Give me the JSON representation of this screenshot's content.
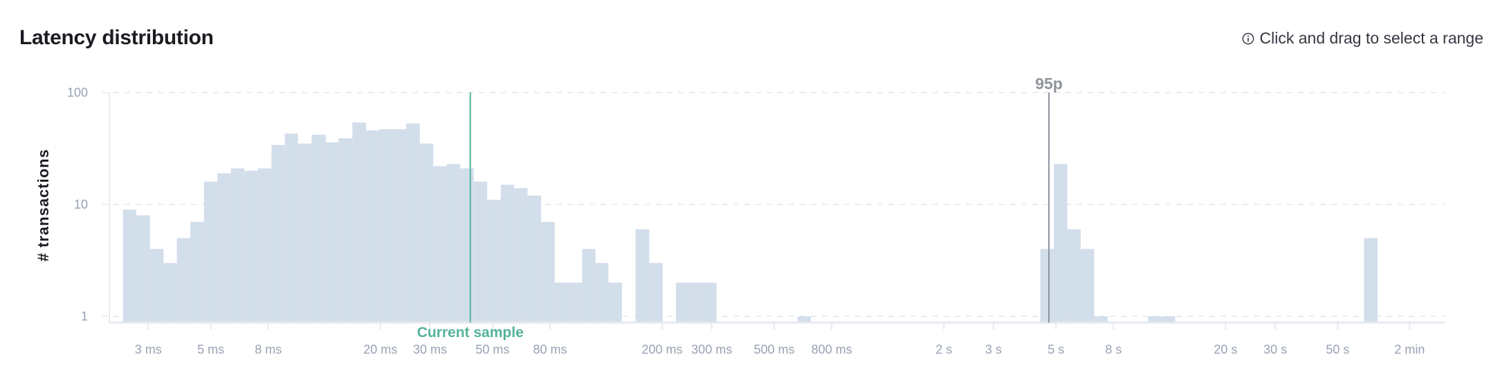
{
  "header": {
    "title": "Latency distribution",
    "hint_icon": "info-circle-icon",
    "hint": "Click and drag to select a range"
  },
  "colors": {
    "bar": "#d3deeb",
    "current_sample": "#54b399",
    "percentile": "#8f949c",
    "grid": "#e9ecf0",
    "axis": "#e6e9ef",
    "tick_text": "#98a2b3"
  },
  "chart_data": {
    "type": "bar",
    "title": "Latency distribution",
    "ylabel": "# transactions",
    "xlabel": "",
    "x_scale": "log",
    "y_scale": "log",
    "grid": "horizontal dashed",
    "xlim_ms": [
      2.1,
      120000
    ],
    "ylim": [
      0.88,
      100
    ],
    "y_ticks": [
      {
        "value": 100,
        "label": "100"
      },
      {
        "value": 10,
        "label": "10"
      },
      {
        "value": 1,
        "label": "1"
      }
    ],
    "x_ticks": [
      {
        "value": 3,
        "label": "3 ms"
      },
      {
        "value": 5,
        "label": "5 ms"
      },
      {
        "value": 8,
        "label": "8 ms"
      },
      {
        "value": 20,
        "label": "20 ms"
      },
      {
        "value": 30,
        "label": "30 ms"
      },
      {
        "value": 50,
        "label": "50 ms"
      },
      {
        "value": 80,
        "label": "80 ms"
      },
      {
        "value": 200,
        "label": "200 ms"
      },
      {
        "value": 300,
        "label": "300 ms"
      },
      {
        "value": 500,
        "label": "500 ms"
      },
      {
        "value": 800,
        "label": "800 ms"
      },
      {
        "value": 2000,
        "label": "2 s"
      },
      {
        "value": 3000,
        "label": "3 s"
      },
      {
        "value": 5000,
        "label": "5 s"
      },
      {
        "value": 8000,
        "label": "8 s"
      },
      {
        "value": 20000,
        "label": "20 s"
      },
      {
        "value": 30000,
        "label": "30 s"
      },
      {
        "value": 50000,
        "label": "50 s"
      },
      {
        "value": 90000,
        "label": "2 min"
      }
    ],
    "bins": [
      {
        "from_ms": 2.44,
        "to_ms": 2.72,
        "count": 9
      },
      {
        "from_ms": 2.72,
        "to_ms": 3.04,
        "count": 8
      },
      {
        "from_ms": 3.04,
        "to_ms": 3.4,
        "count": 4
      },
      {
        "from_ms": 3.4,
        "to_ms": 3.79,
        "count": 3
      },
      {
        "from_ms": 3.79,
        "to_ms": 4.23,
        "count": 5
      },
      {
        "from_ms": 4.23,
        "to_ms": 4.73,
        "count": 7
      },
      {
        "from_ms": 4.73,
        "to_ms": 5.28,
        "count": 16
      },
      {
        "from_ms": 5.28,
        "to_ms": 5.89,
        "count": 19
      },
      {
        "from_ms": 5.89,
        "to_ms": 6.58,
        "count": 21
      },
      {
        "from_ms": 6.58,
        "to_ms": 7.35,
        "count": 20
      },
      {
        "from_ms": 7.35,
        "to_ms": 8.21,
        "count": 21
      },
      {
        "from_ms": 8.21,
        "to_ms": 9.16,
        "count": 34
      },
      {
        "from_ms": 9.16,
        "to_ms": 10.2,
        "count": 43
      },
      {
        "from_ms": 10.2,
        "to_ms": 11.4,
        "count": 35
      },
      {
        "from_ms": 11.4,
        "to_ms": 12.8,
        "count": 42
      },
      {
        "from_ms": 12.8,
        "to_ms": 14.2,
        "count": 36
      },
      {
        "from_ms": 14.2,
        "to_ms": 15.9,
        "count": 39
      },
      {
        "from_ms": 15.9,
        "to_ms": 17.8,
        "count": 54
      },
      {
        "from_ms": 17.8,
        "to_ms": 19.8,
        "count": 46
      },
      {
        "from_ms": 19.8,
        "to_ms": 22.1,
        "count": 47
      },
      {
        "from_ms": 22.1,
        "to_ms": 24.7,
        "count": 47
      },
      {
        "from_ms": 24.7,
        "to_ms": 27.6,
        "count": 53
      },
      {
        "from_ms": 27.6,
        "to_ms": 30.8,
        "count": 35
      },
      {
        "from_ms": 30.8,
        "to_ms": 34.4,
        "count": 22
      },
      {
        "from_ms": 34.4,
        "to_ms": 38.4,
        "count": 23
      },
      {
        "from_ms": 38.4,
        "to_ms": 42.9,
        "count": 21
      },
      {
        "from_ms": 42.9,
        "to_ms": 47.9,
        "count": 16
      },
      {
        "from_ms": 47.9,
        "to_ms": 53.5,
        "count": 11
      },
      {
        "from_ms": 53.5,
        "to_ms": 59.7,
        "count": 15
      },
      {
        "from_ms": 59.7,
        "to_ms": 66.6,
        "count": 14
      },
      {
        "from_ms": 66.6,
        "to_ms": 74.4,
        "count": 12
      },
      {
        "from_ms": 74.4,
        "to_ms": 83.1,
        "count": 7
      },
      {
        "from_ms": 83.1,
        "to_ms": 92.8,
        "count": 2
      },
      {
        "from_ms": 92.8,
        "to_ms": 104,
        "count": 2
      },
      {
        "from_ms": 104,
        "to_ms": 116,
        "count": 4
      },
      {
        "from_ms": 116,
        "to_ms": 129,
        "count": 3
      },
      {
        "from_ms": 129,
        "to_ms": 144,
        "count": 2
      },
      {
        "from_ms": 144,
        "to_ms": 161,
        "count": 0
      },
      {
        "from_ms": 161,
        "to_ms": 180,
        "count": 6
      },
      {
        "from_ms": 180,
        "to_ms": 201,
        "count": 3
      },
      {
        "from_ms": 201,
        "to_ms": 224,
        "count": 0
      },
      {
        "from_ms": 224,
        "to_ms": 250,
        "count": 2
      },
      {
        "from_ms": 250,
        "to_ms": 279,
        "count": 2
      },
      {
        "from_ms": 279,
        "to_ms": 312,
        "count": 2
      },
      {
        "from_ms": 605,
        "to_ms": 675,
        "count": 1
      },
      {
        "from_ms": 4397,
        "to_ms": 4911,
        "count": 4
      },
      {
        "from_ms": 4911,
        "to_ms": 5483,
        "count": 23
      },
      {
        "from_ms": 5483,
        "to_ms": 6122,
        "count": 6
      },
      {
        "from_ms": 6122,
        "to_ms": 6836,
        "count": 4
      },
      {
        "from_ms": 6836,
        "to_ms": 7632,
        "count": 1
      },
      {
        "from_ms": 10624,
        "to_ms": 11864,
        "count": 1
      },
      {
        "from_ms": 11864,
        "to_ms": 13245,
        "count": 1
      },
      {
        "from_ms": 61999,
        "to_ms": 69230,
        "count": 5
      }
    ],
    "annotations": [
      {
        "type": "vertical-line",
        "value_ms": 41.7,
        "label": "Current sample",
        "label_position": "bottom",
        "color": "#54b399"
      },
      {
        "type": "vertical-line",
        "value_ms": 4720,
        "label": "95p",
        "label_position": "top",
        "color": "#8f949c"
      }
    ]
  }
}
